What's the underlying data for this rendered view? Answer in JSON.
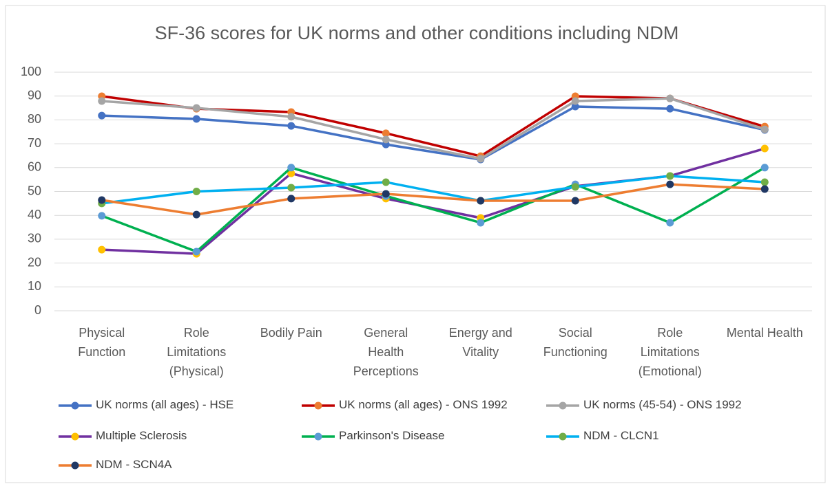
{
  "chart_data": {
    "type": "line",
    "title": "SF-36 scores for UK norms and other conditions including NDM",
    "categories": [
      "Physical Function",
      "Role Limitations (Physical)",
      "Bodily Pain",
      "General Health Perceptions",
      "Energy and Vitality",
      "Social Functioning",
      "Role Limitations (Emotional)",
      "Mental Health"
    ],
    "series": [
      {
        "name": "UK norms (all ages) - HSE",
        "color": "#4472c4",
        "marker_color": "#4472c4",
        "values": [
          81.8,
          80.4,
          77.5,
          69.7,
          63.4,
          85.6,
          84.7,
          75.8
        ]
      },
      {
        "name": "UK norms (all ages) - ONS 1992",
        "color": "#c00000",
        "marker_color": "#ed7d31",
        "values": [
          89.9,
          84.7,
          83.3,
          74.4,
          64.8,
          89.9,
          89,
          77.2
        ]
      },
      {
        "name": "UK norms (45-54) - ONS 1992",
        "color": "#a5a5a5",
        "marker_color": "#a5a5a5",
        "values": [
          87.9,
          85,
          81.3,
          71.8,
          63.7,
          87.9,
          89,
          76
        ]
      },
      {
        "name": "Multiple Sclerosis",
        "color": "#7030a0",
        "marker_color": "#ffc000",
        "values": [
          25.6,
          23.9,
          57.6,
          47,
          38.9,
          52.2,
          56.5,
          68
        ]
      },
      {
        "name": "Parkinson's Disease",
        "color": "#00b050",
        "marker_color": "#5b9bd5",
        "values": [
          39.8,
          24.8,
          60,
          48.1,
          36.9,
          53,
          36.9,
          60
        ]
      },
      {
        "name": "NDM - CLCN1",
        "color": "#00b0f0",
        "marker_color": "#70ad47",
        "values": [
          45,
          50,
          51.6,
          53.9,
          46.1,
          51.9,
          56.5,
          53.9
        ]
      },
      {
        "name": "NDM - SCN4A",
        "color": "#ed7d31",
        "marker_color": "#203864",
        "values": [
          46.4,
          40.3,
          47,
          49,
          46.1,
          46.1,
          53,
          51
        ]
      }
    ],
    "ylim": [
      0,
      100
    ],
    "yticks": [
      0,
      10,
      20,
      30,
      40,
      50,
      60,
      70,
      80,
      90,
      100
    ],
    "grid": true,
    "legend": "bottom"
  }
}
